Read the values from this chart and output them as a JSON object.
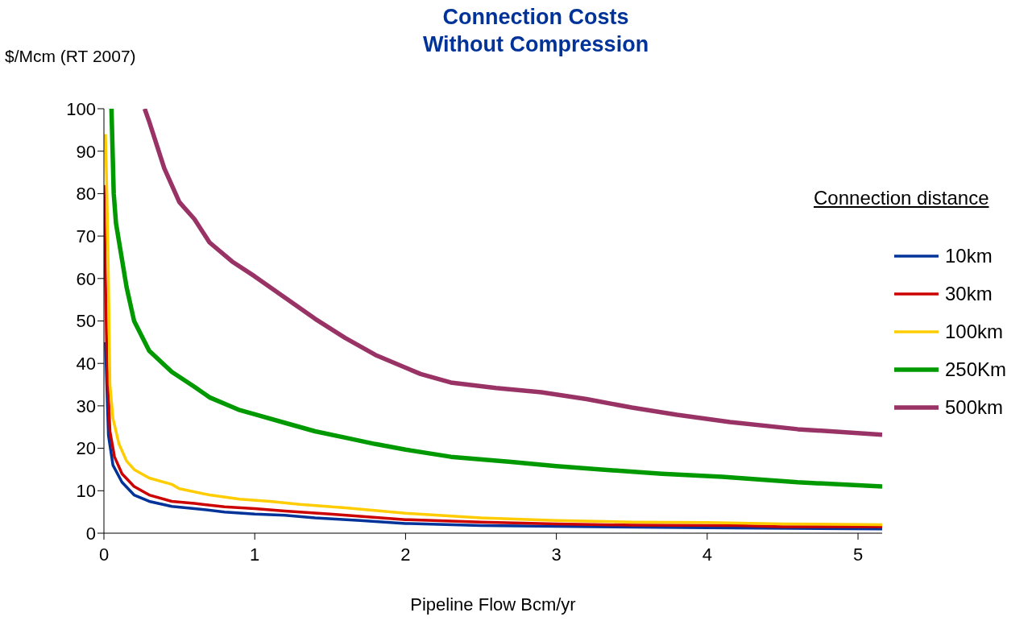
{
  "chart_data": {
    "type": "line",
    "title": "Connection Costs",
    "subtitle": "Without Compression",
    "xlabel": "Pipeline Flow Bcm/yr",
    "ylabel": "$/Mcm (RT 2007)",
    "legend_title": "Connection distance",
    "legend": "right",
    "grid": false,
    "marker": "none",
    "line_style": "solid",
    "xlim": [
      0,
      5.16
    ],
    "xticks": [
      0,
      1,
      2,
      3,
      4,
      5
    ],
    "ylim": [
      0,
      100
    ],
    "yticks": [
      0,
      10,
      20,
      30,
      40,
      50,
      60,
      70,
      80,
      90,
      100
    ],
    "series": [
      {
        "name": "10km",
        "color": "#003399",
        "x": [
          0.01,
          0.03,
          0.06,
          0.12,
          0.2,
          0.3,
          0.45,
          0.6,
          0.8,
          1,
          1.2,
          1.4,
          1.7,
          2,
          2.5,
          3,
          4,
          5.16
        ],
        "values": [
          45,
          23,
          16,
          12,
          9,
          7.5,
          6.3,
          5.8,
          5,
          4.5,
          4.2,
          3.6,
          3,
          2.3,
          1.8,
          1.6,
          1.3,
          1
        ]
      },
      {
        "name": "30km",
        "color": "#cc0000",
        "x": [
          0,
          0.01,
          0.02,
          0.04,
          0.07,
          0.12,
          0.2,
          0.3,
          0.45,
          0.6,
          0.8,
          1,
          1.2,
          1.5,
          2,
          2.5,
          3,
          3.5,
          4.2,
          4.5,
          5.16
        ],
        "values": [
          82,
          60,
          40,
          24,
          18,
          14,
          11,
          9,
          7.5,
          7,
          6.2,
          5.8,
          5.2,
          4.5,
          3.2,
          2.6,
          2.2,
          1.9,
          1.8,
          1.5,
          1.5
        ]
      },
      {
        "name": "100km",
        "color": "#ffcc00",
        "x": [
          0.01,
          0.02,
          0.03,
          0.04,
          0.06,
          0.1,
          0.15,
          0.2,
          0.3,
          0.45,
          0.5,
          0.7,
          0.9,
          1.1,
          1.3,
          1.6,
          2,
          2.5,
          3,
          3.5,
          4,
          4.5,
          5.16
        ],
        "values": [
          94,
          80,
          60,
          35,
          27,
          21,
          17,
          15,
          13,
          11.5,
          10.5,
          9,
          8,
          7.5,
          6.8,
          6,
          4.7,
          3.6,
          3,
          2.6,
          2.5,
          2.2,
          2
        ]
      },
      {
        "name": "250Km",
        "color": "#009900",
        "x": [
          0.05,
          0.065,
          0.08,
          0.15,
          0.2,
          0.3,
          0.45,
          0.6,
          0.7,
          0.9,
          1,
          1.2,
          1.4,
          1.6,
          1.8,
          2,
          2.3,
          2.7,
          3,
          3.3,
          3.7,
          4.1,
          4.6,
          5.16
        ],
        "values": [
          100,
          80,
          73,
          58,
          50,
          43,
          38,
          34.5,
          32,
          29,
          28,
          26,
          24,
          22.5,
          21,
          19.7,
          18,
          16.8,
          15.8,
          15,
          14,
          13.3,
          12,
          11
        ]
      },
      {
        "name": "500km",
        "color": "#993366",
        "x": [
          0.27,
          0.3,
          0.4,
          0.5,
          0.6,
          0.7,
          0.85,
          1,
          1.2,
          1.4,
          1.6,
          1.8,
          2,
          2.1,
          2.3,
          2.6,
          2.9,
          3.2,
          3.5,
          3.8,
          4.15,
          4.6,
          5.16
        ],
        "values": [
          100,
          97,
          86,
          78,
          74,
          68.5,
          64,
          60.5,
          55.5,
          50.5,
          46,
          42,
          39,
          37.5,
          35.5,
          34.2,
          33.2,
          31.6,
          29.6,
          27.9,
          26.2,
          24.5,
          23.2
        ]
      }
    ]
  }
}
